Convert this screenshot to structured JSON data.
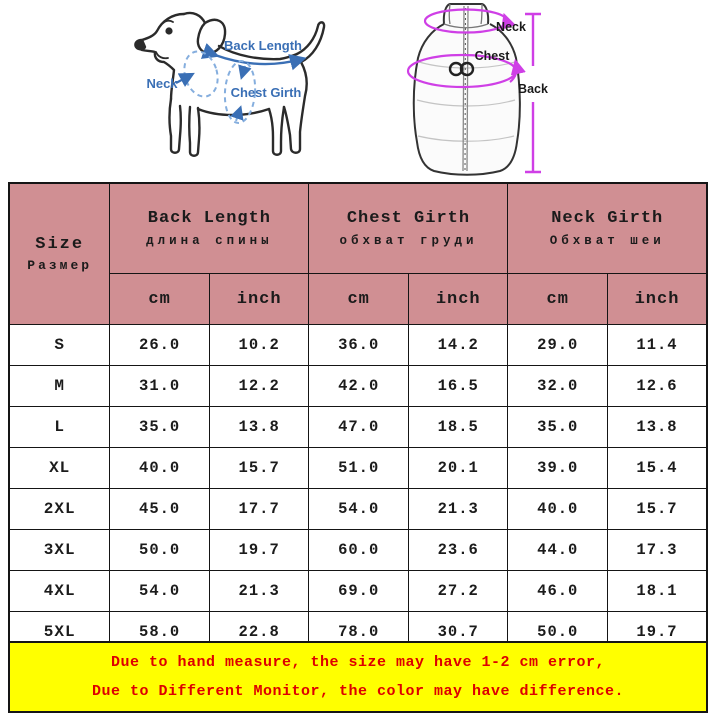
{
  "diagram": {
    "dog_labels": {
      "back_length": "Back Length",
      "neck": "Neck",
      "chest_girth": "Chest Girth"
    },
    "vest_labels": {
      "neck": "Neck",
      "chest": "Chest",
      "back": "Back"
    },
    "label_color_blue": "#3a6fb5",
    "annotation_color_magenta": "#cf3fe6"
  },
  "table": {
    "header_bg": "#d08f93",
    "size_header": {
      "en": "Size",
      "ru": "Размер"
    },
    "groups": [
      {
        "en": "Back Length",
        "ru": "длина спины"
      },
      {
        "en": "Chest Girth",
        "ru": "обхват груди"
      },
      {
        "en": "Neck Girth",
        "ru": "Обхват шеи"
      }
    ],
    "unit_headers": [
      "cm",
      "inch",
      "cm",
      "inch",
      "cm",
      "inch"
    ],
    "rows": [
      {
        "size": "S",
        "values": [
          "26.0",
          "10.2",
          "36.0",
          "14.2",
          "29.0",
          "11.4"
        ]
      },
      {
        "size": "M",
        "values": [
          "31.0",
          "12.2",
          "42.0",
          "16.5",
          "32.0",
          "12.6"
        ]
      },
      {
        "size": "L",
        "values": [
          "35.0",
          "13.8",
          "47.0",
          "18.5",
          "35.0",
          "13.8"
        ]
      },
      {
        "size": "XL",
        "values": [
          "40.0",
          "15.7",
          "51.0",
          "20.1",
          "39.0",
          "15.4"
        ]
      },
      {
        "size": "2XL",
        "values": [
          "45.0",
          "17.7",
          "54.0",
          "21.3",
          "40.0",
          "15.7"
        ]
      },
      {
        "size": "3XL",
        "values": [
          "50.0",
          "19.7",
          "60.0",
          "23.6",
          "44.0",
          "17.3"
        ]
      },
      {
        "size": "4XL",
        "values": [
          "54.0",
          "21.3",
          "69.0",
          "27.2",
          "46.0",
          "18.1"
        ]
      },
      {
        "size": "5XL",
        "values": [
          "58.0",
          "22.8",
          "78.0",
          "30.7",
          "50.0",
          "19.7"
        ]
      }
    ]
  },
  "footer": {
    "bg": "#ffff00",
    "text_color": "#dd0000",
    "line1": "Due to hand measure, the size may have 1-2 cm error,",
    "line2": "Due to Different Monitor, the color may have difference."
  },
  "chart_data": {
    "type": "table",
    "title": "Pet vest size chart (Size / Размер)",
    "columns": [
      "Size",
      "Back Length cm",
      "Back Length inch",
      "Chest Girth cm",
      "Chest Girth inch",
      "Neck Girth cm",
      "Neck Girth inch"
    ],
    "rows": [
      [
        "S",
        26.0,
        10.2,
        36.0,
        14.2,
        29.0,
        11.4
      ],
      [
        "M",
        31.0,
        12.2,
        42.0,
        16.5,
        32.0,
        12.6
      ],
      [
        "L",
        35.0,
        13.8,
        47.0,
        18.5,
        35.0,
        13.8
      ],
      [
        "XL",
        40.0,
        15.7,
        51.0,
        20.1,
        39.0,
        15.4
      ],
      [
        "2XL",
        45.0,
        17.7,
        54.0,
        21.3,
        40.0,
        15.7
      ],
      [
        "3XL",
        50.0,
        19.7,
        60.0,
        23.6,
        44.0,
        17.3
      ],
      [
        "4XL",
        54.0,
        21.3,
        69.0,
        27.2,
        46.0,
        18.1
      ],
      [
        "5XL",
        58.0,
        22.8,
        78.0,
        30.7,
        50.0,
        19.7
      ]
    ]
  }
}
